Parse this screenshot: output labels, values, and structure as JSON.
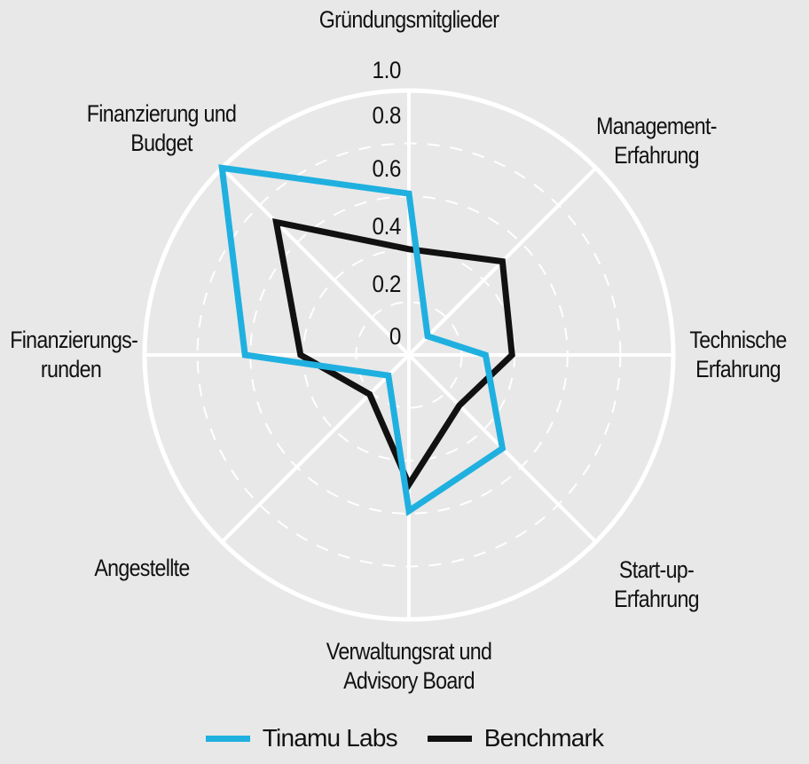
{
  "chart_data": {
    "type": "radar",
    "title": "",
    "axes": [
      "Gründungsmitglieder",
      "Management-Erfahrung",
      "Technische Erfahrung",
      "Start-up-Erfahrung",
      "Verwaltungsrat und Advisory Board",
      "Angestellte",
      "Finanzierungsrunden",
      "Finanzierung und Budget"
    ],
    "series": [
      {
        "name": "Tinamu Labs",
        "color": "#1fb0e0",
        "values": [
          0.61,
          0.1,
          0.29,
          0.5,
          0.59,
          0.11,
          0.62,
          1.0
        ]
      },
      {
        "name": "Benchmark",
        "color": "#111111",
        "values": [
          0.4,
          0.5,
          0.39,
          0.27,
          0.49,
          0.21,
          0.41,
          0.71
        ]
      }
    ],
    "r_ticks": [
      "0",
      "0.2",
      "0.4",
      "0.6",
      "0.8",
      "1.0"
    ],
    "r_range": [
      0,
      1
    ],
    "grid": true,
    "legend_position": "bottom"
  },
  "labels": {
    "axis_0": "Gründungsmitglieder",
    "axis_1_line1": "Management-",
    "axis_1_line2": "Erfahrung",
    "axis_2_line1": "Technische",
    "axis_2_line2": "Erfahrung",
    "axis_3_line1": "Start-up-",
    "axis_3_line2": "Erfahrung",
    "axis_4_line1": "Verwaltungsrat und",
    "axis_4_line2": "Advisory Board",
    "axis_5": "Angestellte",
    "axis_6_line1": "Finanzierungs-",
    "axis_6_line2": "runden",
    "axis_7_line1": "Finanzierung und",
    "axis_7_line2": "Budget"
  },
  "ticks": [
    "0",
    "0.2",
    "0.4",
    "0.6",
    "0.8",
    "1.0"
  ],
  "legend": {
    "tinamu": "Tinamu Labs",
    "benchmark": "Benchmark",
    "tinamu_color": "#1fb0e0",
    "benchmark_color": "#111111"
  },
  "colors": {
    "background": "#e8e8e8",
    "grid": "#ffffff"
  }
}
